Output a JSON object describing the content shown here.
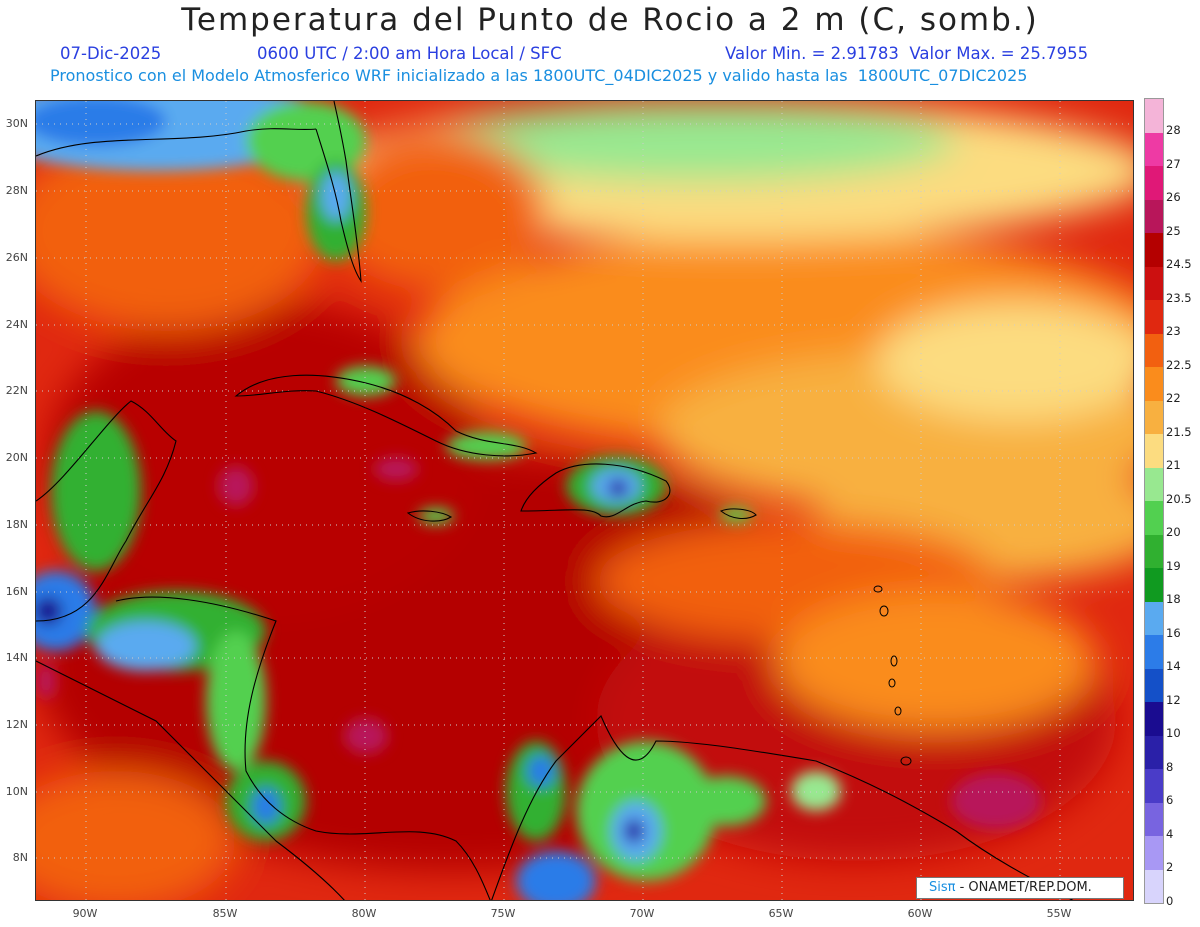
{
  "title": "Temperatura del Punto de Rocio a 2 m (C, somb.)",
  "subtitle": {
    "date": "07-Dic-2025",
    "time": "0600 UTC / 2:00 am Hora Local / SFC",
    "minmax": "Valor Min. = 2.91783  Valor Max. = 25.7955"
  },
  "description": "Pronostico con el Modelo Atmosferico WRF inicializado a las 1800UTC_04DIC2025 y valido hasta las  1800UTC_07DIC2025",
  "lat_labels": [
    "30N",
    "28N",
    "26N",
    "24N",
    "22N",
    "20N",
    "18N",
    "16N",
    "14N",
    "12N",
    "10N",
    "8N"
  ],
  "lon_labels": [
    "90W",
    "85W",
    "80W",
    "75W",
    "70W",
    "65W",
    "60W",
    "55W"
  ],
  "colorbar": {
    "labels": [
      "28",
      "27",
      "26",
      "25",
      "24.5",
      "23.5",
      "23",
      "22.5",
      "22",
      "21.5",
      "21",
      "20.5",
      "20",
      "19",
      "18",
      "16",
      "14",
      "12",
      "10",
      "8",
      "6",
      "4",
      "2",
      "0"
    ],
    "colors": [
      "#f4b4d8",
      "#ee3aa4",
      "#e01877",
      "#b8165a",
      "#b40000",
      "#cc1010",
      "#e02810",
      "#f26010",
      "#fa8c1c",
      "#f8b040",
      "#fcdc80",
      "#98e890",
      "#52d050",
      "#30b030",
      "#109a20",
      "#5aaaf0",
      "#2c7ce8",
      "#1450c8",
      "#1a0c90",
      "#2a20a8",
      "#4a3cc8",
      "#7864e0",
      "#a898f4",
      "#d8d4fc"
    ]
  },
  "credit": {
    "logo": "Sisπ",
    "text": " - ONAMET/REP.DOM."
  },
  "palette": {
    "title": "#222222",
    "subtitle": "#2a3fe0",
    "description": "#1a8fe0",
    "coast": "#000000"
  }
}
